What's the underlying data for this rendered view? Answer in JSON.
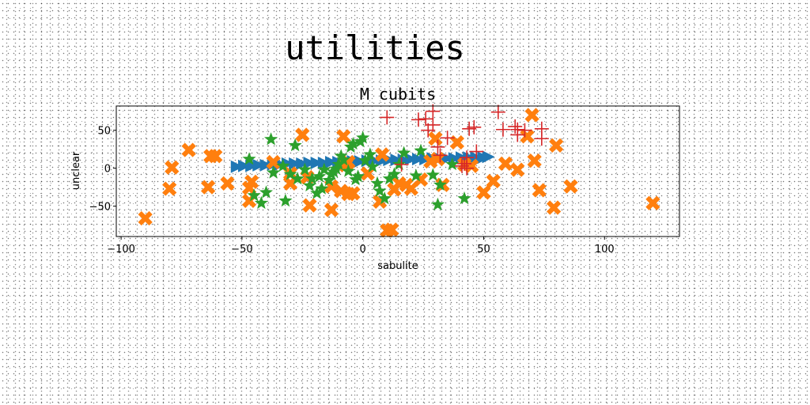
{
  "page_title": "utilities",
  "chart_data": {
    "type": "scatter",
    "title": "M cubits",
    "xlabel": "sabulite",
    "ylabel": "unclear",
    "xlim": [
      -102,
      131
    ],
    "ylim": [
      -90,
      82
    ],
    "xticks": [
      -100,
      -50,
      0,
      50,
      100
    ],
    "yticks": [
      -50,
      0,
      50
    ],
    "grid": false,
    "legend": "none",
    "series": [
      {
        "marker": "triangle-right",
        "color": "#1f77b4",
        "points": [
          [
            -52,
            2
          ],
          [
            -49,
            3
          ],
          [
            -46,
            3
          ],
          [
            -43,
            4
          ],
          [
            -40,
            4
          ],
          [
            -37,
            5
          ],
          [
            -34,
            5
          ],
          [
            -31,
            6
          ],
          [
            -28,
            6
          ],
          [
            -25,
            6
          ],
          [
            -22,
            7
          ],
          [
            -19,
            7
          ],
          [
            -16,
            7
          ],
          [
            -13,
            8
          ],
          [
            -10,
            8
          ],
          [
            -7,
            9
          ],
          [
            -4,
            9
          ],
          [
            -1,
            9
          ],
          [
            2,
            10
          ],
          [
            5,
            10
          ],
          [
            8,
            10
          ],
          [
            11,
            11
          ],
          [
            14,
            11
          ],
          [
            17,
            11
          ],
          [
            20,
            12
          ],
          [
            23,
            12
          ],
          [
            26,
            12
          ],
          [
            29,
            13
          ],
          [
            32,
            13
          ],
          [
            35,
            13
          ],
          [
            38,
            13
          ],
          [
            41,
            14
          ],
          [
            44,
            14
          ],
          [
            47,
            14
          ],
          [
            50,
            14
          ],
          [
            52,
            15
          ]
        ]
      },
      {
        "marker": "x-thick",
        "color": "#ff7f0e",
        "points": [
          [
            -90,
            -66
          ],
          [
            -80,
            -27
          ],
          [
            -79,
            1
          ],
          [
            -72,
            24
          ],
          [
            -64,
            -25
          ],
          [
            -63,
            16
          ],
          [
            -61,
            16
          ],
          [
            -56,
            -20
          ],
          [
            -47,
            -43
          ],
          [
            -47,
            -26
          ],
          [
            -46,
            -18
          ],
          [
            -37,
            8
          ],
          [
            -30,
            -20
          ],
          [
            -30,
            -7
          ],
          [
            -25,
            44
          ],
          [
            -23,
            -12
          ],
          [
            -22,
            -49
          ],
          [
            -13,
            -55
          ],
          [
            -13,
            -24
          ],
          [
            -9,
            -30
          ],
          [
            -7,
            4
          ],
          [
            -6,
            8
          ],
          [
            -8,
            42
          ],
          [
            -6,
            -34
          ],
          [
            -4,
            -33
          ],
          [
            2,
            -7
          ],
          [
            7,
            -44
          ],
          [
            8,
            18
          ],
          [
            10,
            -82
          ],
          [
            12,
            -81
          ],
          [
            13,
            -28
          ],
          [
            15,
            -20
          ],
          [
            18,
            -22
          ],
          [
            20,
            -27
          ],
          [
            24,
            -15
          ],
          [
            28,
            9
          ],
          [
            30,
            39
          ],
          [
            31,
            12
          ],
          [
            33,
            -22
          ],
          [
            39,
            34
          ],
          [
            42,
            5
          ],
          [
            45,
            3
          ],
          [
            50,
            -32
          ],
          [
            54,
            -17
          ],
          [
            59,
            6
          ],
          [
            64,
            -2
          ],
          [
            68,
            42
          ],
          [
            71,
            10
          ],
          [
            70,
            70
          ],
          [
            73,
            -29
          ],
          [
            79,
            -52
          ],
          [
            80,
            30
          ],
          [
            86,
            -24
          ],
          [
            120,
            -46
          ]
        ]
      },
      {
        "marker": "star",
        "color": "#2ca02c",
        "points": [
          [
            -47,
            12
          ],
          [
            -45,
            -36
          ],
          [
            -42,
            -46
          ],
          [
            -40,
            -32
          ],
          [
            -38,
            38
          ],
          [
            -37,
            -6
          ],
          [
            -33,
            3
          ],
          [
            -32,
            -43
          ],
          [
            -30,
            -8
          ],
          [
            -28,
            30
          ],
          [
            -27,
            -14
          ],
          [
            -24,
            -2
          ],
          [
            -22,
            -23
          ],
          [
            -21,
            -14
          ],
          [
            -19,
            -33
          ],
          [
            -18,
            -11
          ],
          [
            -17,
            -27
          ],
          [
            -16,
            -2
          ],
          [
            -14,
            -16
          ],
          [
            -13,
            -8
          ],
          [
            -12,
            -5
          ],
          [
            -11,
            -1
          ],
          [
            -10,
            5
          ],
          [
            -9,
            16
          ],
          [
            -8,
            11
          ],
          [
            -6,
            -4
          ],
          [
            -5,
            28
          ],
          [
            -4,
            32
          ],
          [
            -3,
            -15
          ],
          [
            -2,
            -11
          ],
          [
            -1,
            35
          ],
          [
            0,
            40
          ],
          [
            1,
            10
          ],
          [
            3,
            18
          ],
          [
            4,
            2
          ],
          [
            6,
            -20
          ],
          [
            7,
            -30
          ],
          [
            9,
            -40
          ],
          [
            11,
            -14
          ],
          [
            13,
            -8
          ],
          [
            15,
            5
          ],
          [
            17,
            20
          ],
          [
            22,
            -10
          ],
          [
            24,
            23
          ],
          [
            29,
            -9
          ],
          [
            31,
            -48
          ],
          [
            32,
            -22
          ],
          [
            37,
            5
          ],
          [
            42,
            -40
          ]
        ]
      },
      {
        "marker": "plus",
        "color": "#d62728",
        "points": [
          [
            10,
            67
          ],
          [
            16,
            5
          ],
          [
            23,
            64
          ],
          [
            26,
            65
          ],
          [
            27,
            50
          ],
          [
            29,
            75
          ],
          [
            29,
            57
          ],
          [
            31,
            28
          ],
          [
            32,
            17
          ],
          [
            35,
            40
          ],
          [
            41,
            3
          ],
          [
            42,
            6
          ],
          [
            43,
            0
          ],
          [
            43,
            14
          ],
          [
            44,
            52
          ],
          [
            46,
            54
          ],
          [
            47,
            22
          ],
          [
            56,
            74
          ],
          [
            58,
            51
          ],
          [
            63,
            55
          ],
          [
            64,
            51
          ],
          [
            64,
            44
          ],
          [
            67,
            50
          ],
          [
            74,
            52
          ],
          [
            74,
            39
          ]
        ]
      }
    ]
  }
}
